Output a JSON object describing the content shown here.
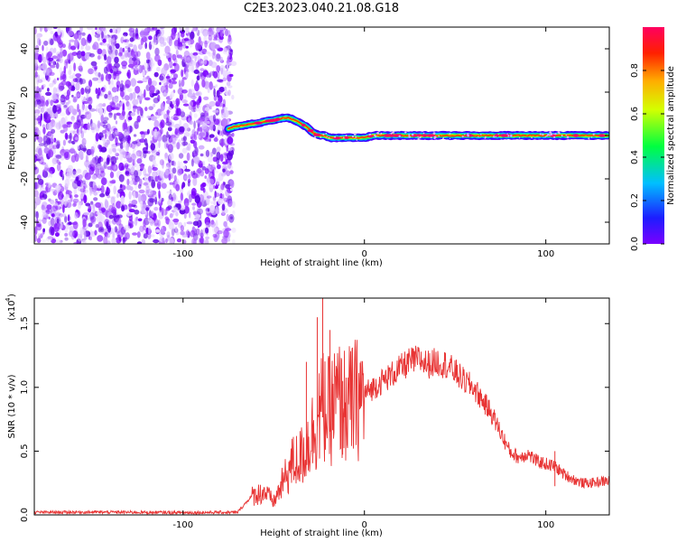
{
  "figure": {
    "title": "C2E3.2023.040.21.08.G18"
  },
  "chart_data": [
    {
      "type": "heatmap",
      "title": "C2E3.2023.040.21.08.G18",
      "xlabel": "Height of straight line (km)",
      "ylabel": "Frequency (Hz)",
      "xlim": [
        -182,
        135
      ],
      "ylim": [
        -50,
        50
      ],
      "x_ticks": [
        -100,
        0,
        100
      ],
      "y_ticks": [
        -40,
        -20,
        0,
        20,
        40
      ],
      "noise_region_x": [
        -182,
        -72
      ],
      "ridge": {
        "x": [
          -75,
          -72,
          -68,
          -64,
          -60,
          -55,
          -50,
          -45,
          -42,
          -40,
          -37,
          -34,
          -32,
          -30,
          -28,
          -25,
          -22,
          -20,
          -15,
          -10,
          -5,
          0,
          5,
          10,
          20,
          40,
          60,
          80,
          100,
          120,
          135
        ],
        "y": [
          3,
          4,
          4.5,
          5,
          5.5,
          6.5,
          7,
          8,
          8.2,
          7.5,
          6.5,
          5,
          4,
          2.5,
          1,
          0,
          0,
          -1,
          -1.2,
          -1,
          -1,
          -1,
          0,
          0,
          0,
          0,
          0,
          0,
          0,
          0,
          0
        ]
      },
      "colorbar": {
        "label": "Normalized spectral amplitude",
        "range": [
          0,
          1
        ],
        "ticks": [
          0.0,
          0.2,
          0.4,
          0.6,
          0.8
        ],
        "colors": [
          "#7a00ff",
          "#1d1dff",
          "#00bfff",
          "#00ff40",
          "#d4ff00",
          "#ffae00",
          "#ff2000",
          "#ff0060"
        ]
      }
    },
    {
      "type": "line",
      "xlabel": "Height of straight line (km)",
      "ylabel": "SNR (10 * v/v)",
      "y_scale_label": "(x10",
      "y_scale_exp": "4",
      "xlim": [
        -182,
        135
      ],
      "ylim": [
        0,
        17000
      ],
      "x_ticks": [
        -100,
        0,
        100
      ],
      "y_ticks": [
        0.0,
        0.5,
        1.0,
        1.5
      ],
      "color": "#e83434",
      "series": [
        {
          "x": [
            -182,
            -150,
            -120,
            -100,
            -80,
            -70,
            -62,
            -55,
            -50,
            -45,
            -40,
            -35,
            -30,
            -27,
            -25,
            -22,
            -20,
            -15,
            -10,
            -5,
            0,
            10,
            20,
            25,
            30,
            35,
            40,
            45,
            50,
            55,
            60,
            65,
            70,
            75,
            80,
            85,
            90,
            95,
            100,
            105,
            110,
            115,
            120,
            125,
            130,
            135
          ],
          "y": [
            200,
            220,
            200,
            180,
            200,
            200,
            1500,
            1800,
            1000,
            2500,
            4000,
            4500,
            6000,
            7000,
            8000,
            8500,
            8000,
            9000,
            8500,
            9000,
            9500,
            10500,
            11500,
            12000,
            12200,
            11800,
            12000,
            11800,
            11200,
            10500,
            10000,
            9000,
            8000,
            6500,
            5000,
            4500,
            4800,
            4200,
            4000,
            3800,
            3200,
            2800,
            2500,
            2500,
            2600,
            2700
          ]
        }
      ],
      "spikes": [
        {
          "x": -32,
          "y": 12000
        },
        {
          "x": -26,
          "y": 15500
        },
        {
          "x": -23,
          "y": 17000
        },
        {
          "x": -19,
          "y": 14500
        },
        {
          "x": -12,
          "y": 10500
        },
        {
          "x": 105,
          "y": 5000
        }
      ]
    }
  ]
}
